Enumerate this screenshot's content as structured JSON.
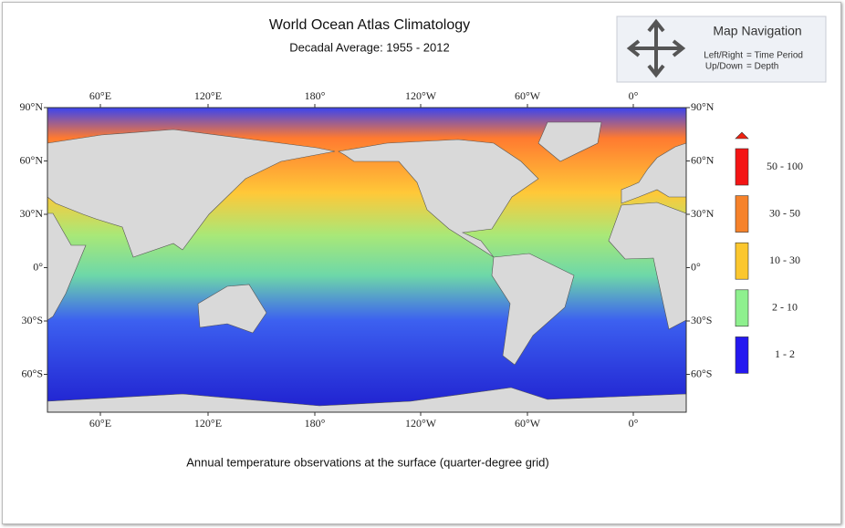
{
  "header": {
    "title": "World Ocean Atlas Climatology",
    "subtitle": "Decadal Average: 1955 - 2012"
  },
  "navigation": {
    "title": "Map Navigation",
    "rows": [
      [
        "Left/Right",
        "= Time Period"
      ],
      [
        "Up/Down",
        "= Depth"
      ]
    ]
  },
  "map": {
    "longitude_labels": [
      "60°E",
      "120°E",
      "180°",
      "120°W",
      "60°W",
      "0°"
    ],
    "latitude_labels": [
      "90°N",
      "60°N",
      "30°N",
      "0°",
      "30°S",
      "60°S"
    ]
  },
  "legend": {
    "items": [
      {
        "label": "50 - 100",
        "color": "#f41414"
      },
      {
        "label": "30 - 50",
        "color": "#f6822a"
      },
      {
        "label": "10 - 30",
        "color": "#fbc72e"
      },
      {
        "label": "2 - 10",
        "color": "#8ef08e"
      },
      {
        "label": "1 - 2",
        "color": "#2418f0"
      }
    ]
  },
  "caption": "Annual temperature  observations at the surface (quarter-degree grid)"
}
